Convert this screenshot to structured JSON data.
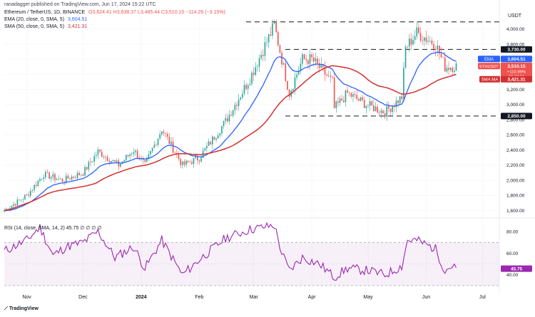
{
  "header": {
    "byline": "ranadagger published on TradingView.com, Jun 17, 2024 15:22 UTC",
    "symbol": "Ethereum / TetherUS, 1D, BINANCE",
    "ohlc": "O3,624.41  H3,638.37  L3,485.44  C3,510.15  −114.26 (−3.15%)",
    "ema_line": "EMA (20, close, 0, SMA, 5)",
    "ema_value": "3,604.51",
    "sma_line": "SMA (50, close, 0, SMA, 5)",
    "sma_value": "3,421.31"
  },
  "footer": {
    "brand": "TradingView"
  },
  "colors": {
    "up": "#26a69a",
    "down": "#ef5350",
    "ema": "#2962ff",
    "sma": "#d32f2f",
    "rsi": "#9c27b0",
    "levels": "#131722"
  },
  "chart_data": [
    {
      "type": "candlestick",
      "title": "Ethereum / TetherUS, 1D, BINANCE",
      "y_axis_label": "USDT",
      "y_ticks": [
        "1,600.00",
        "1,800.00",
        "2,000.00",
        "2,200.00",
        "2,400.00",
        "2,600.00",
        "2,800.00",
        "3,000.00",
        "3,200.00",
        "3,400.00",
        "3,600.00",
        "3,800.00",
        "4,000.00"
      ],
      "ylim": [
        1540,
        4120
      ],
      "x_ticks": [
        {
          "label": "Nov",
          "x": "2023-11-01"
        },
        {
          "label": "Dec",
          "x": "2023-12-01"
        },
        {
          "label": "2024",
          "x": "2024-01-01"
        },
        {
          "label": "Feb",
          "x": "2024-02-01"
        },
        {
          "label": "Mar",
          "x": "2024-03-01"
        },
        {
          "label": "Apr",
          "x": "2024-04-01"
        },
        {
          "label": "May",
          "x": "2024-05-01"
        },
        {
          "label": "Jun",
          "x": "2024-06-01"
        },
        {
          "label": "Jul",
          "x": "2024-07-01"
        }
      ],
      "xlim": [
        "2023-10-20",
        "2024-07-10"
      ],
      "start_date": "2023-10-20",
      "end_date": "2024-06-17",
      "price_anchors": [
        [
          "2023-10-20",
          1600
        ],
        [
          "2023-11-01",
          1800
        ],
        [
          "2023-11-10",
          2080
        ],
        [
          "2023-11-20",
          2000
        ],
        [
          "2023-12-01",
          2100
        ],
        [
          "2023-12-09",
          2380
        ],
        [
          "2023-12-20",
          2200
        ],
        [
          "2023-12-28",
          2400
        ],
        [
          "2024-01-03",
          2200
        ],
        [
          "2024-01-12",
          2680
        ],
        [
          "2024-01-23",
          2200
        ],
        [
          "2024-02-01",
          2300
        ],
        [
          "2024-02-15",
          2780
        ],
        [
          "2024-02-28",
          3350
        ],
        [
          "2024-03-12",
          4050
        ],
        [
          "2024-03-20",
          3150
        ],
        [
          "2024-03-27",
          3600
        ],
        [
          "2024-04-01",
          3600
        ],
        [
          "2024-04-12",
          3300
        ],
        [
          "2024-04-13",
          2950
        ],
        [
          "2024-04-20",
          3150
        ],
        [
          "2024-04-30",
          3000
        ],
        [
          "2024-05-10",
          2900
        ],
        [
          "2024-05-19",
          3100
        ],
        [
          "2024-05-21",
          3750
        ],
        [
          "2024-05-27",
          3950
        ],
        [
          "2024-06-06",
          3800
        ],
        [
          "2024-06-11",
          3500
        ],
        [
          "2024-06-17",
          3510
        ]
      ],
      "levels": [
        {
          "value": 4094,
          "label": ""
        },
        {
          "value": 3730,
          "label": "3,730.00"
        },
        {
          "value": 2850,
          "label": "2,850.00"
        }
      ],
      "series": [
        {
          "name": "EMA",
          "period": 20,
          "last": "3,604.51",
          "color": "#2962ff"
        },
        {
          "name": "SMA:MA",
          "period": 50,
          "last": "3,421.31",
          "color": "#d32f2f"
        }
      ],
      "price_label": {
        "name": "ETHUSDT",
        "value": "3,510.15",
        "change": "+110.99%",
        "countdown": "08:37:51"
      }
    },
    {
      "type": "line",
      "title": "RSI (14, close, SMA, 14, 2)",
      "legend": "RSI (14, close, SMA, 14, 2)  45.75  ∅ ∅ ∅ ∅",
      "y_ticks": [
        "40.00",
        "60.00",
        "80.00"
      ],
      "ylim": [
        28,
        90
      ],
      "band": [
        30,
        70
      ],
      "last": "45.75",
      "anchors": [
        [
          "2023-10-20",
          62
        ],
        [
          "2023-11-01",
          72
        ],
        [
          "2023-11-08",
          84
        ],
        [
          "2023-11-15",
          58
        ],
        [
          "2023-11-22",
          66
        ],
        [
          "2023-12-01",
          70
        ],
        [
          "2023-12-09",
          80
        ],
        [
          "2023-12-18",
          56
        ],
        [
          "2023-12-28",
          66
        ],
        [
          "2024-01-03",
          46
        ],
        [
          "2024-01-12",
          72
        ],
        [
          "2024-01-23",
          40
        ],
        [
          "2024-02-01",
          54
        ],
        [
          "2024-02-15",
          74
        ],
        [
          "2024-02-28",
          82
        ],
        [
          "2024-03-12",
          86
        ],
        [
          "2024-03-16",
          60
        ],
        [
          "2024-03-20",
          44
        ],
        [
          "2024-03-27",
          56
        ],
        [
          "2024-04-05",
          50
        ],
        [
          "2024-04-13",
          38
        ],
        [
          "2024-04-20",
          46
        ],
        [
          "2024-05-01",
          44
        ],
        [
          "2024-05-10",
          40
        ],
        [
          "2024-05-19",
          48
        ],
        [
          "2024-05-22",
          72
        ],
        [
          "2024-05-27",
          72
        ],
        [
          "2024-06-06",
          64
        ],
        [
          "2024-06-11",
          44
        ],
        [
          "2024-06-14",
          48
        ],
        [
          "2024-06-17",
          45.75
        ]
      ]
    }
  ]
}
